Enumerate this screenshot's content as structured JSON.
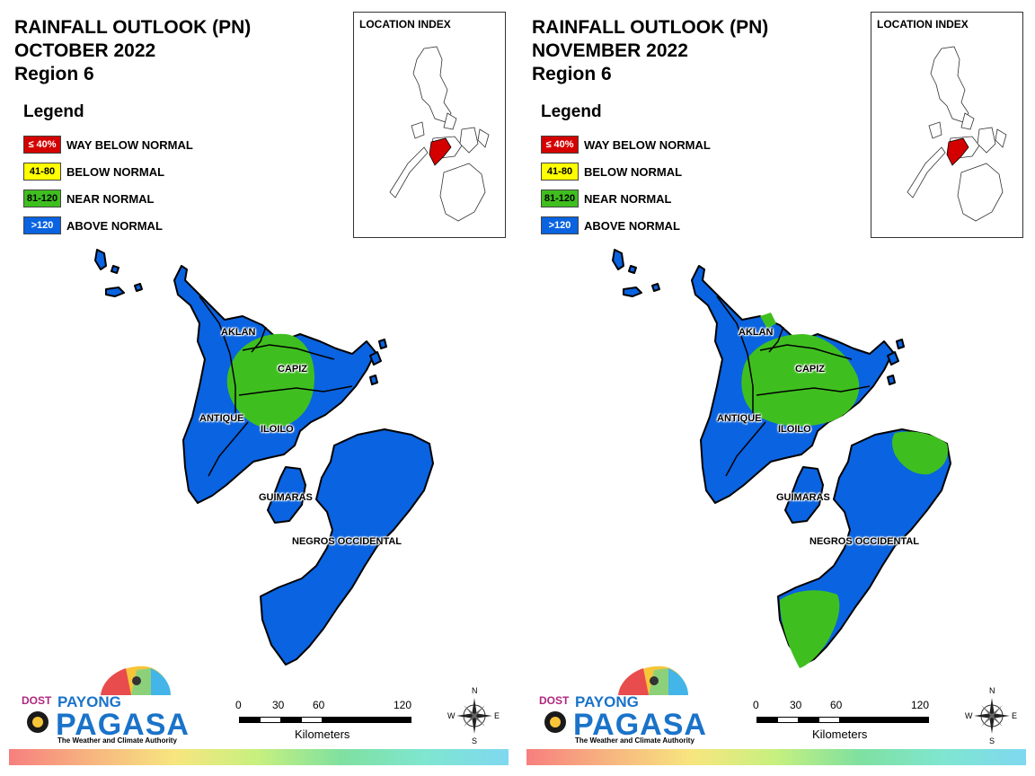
{
  "panels": [
    {
      "title": [
        "RAINFALL OUTLOOK (PN)",
        "OCTOBER 2022",
        "Region 6"
      ],
      "legend": {
        "title": "Legend",
        "items": [
          {
            "code": "≤ 40%",
            "label": "WAY BELOW NORMAL",
            "color": "#d40000",
            "text_color": "#ffffff"
          },
          {
            "code": "41-80",
            "label": "BELOW NORMAL",
            "color": "#ffff00",
            "text_color": "#000000"
          },
          {
            "code": "81-120",
            "label": "NEAR NORMAL",
            "color": "#3fbf1f",
            "text_color": "#000000"
          },
          {
            "code": ">120",
            "label": "ABOVE NORMAL",
            "color": "#0a63e0",
            "text_color": "#ffffff"
          }
        ]
      },
      "location_index": {
        "title": "LOCATION INDEX"
      },
      "provinces": [
        "AKLAN",
        "CAPIZ",
        "ANTIQUE",
        "ILOILO",
        "GUIMARAS",
        "NEGROS OCCIDENTAL"
      ],
      "near_normal_zones": [
        "Aklan–Capiz–Iloilo central area"
      ],
      "scale": {
        "ticks": [
          "0",
          "30",
          "60",
          "120"
        ],
        "unit": "Kilometers"
      },
      "compass": {
        "n": "N",
        "e": "E",
        "s": "S",
        "w": "W"
      },
      "logo": {
        "dost": "DOST",
        "payong": "PAYONG",
        "pagasa": "PAGASA",
        "tagline": "The Weather and Climate Authority"
      }
    },
    {
      "title": [
        "RAINFALL OUTLOOK (PN)",
        "NOVEMBER 2022",
        "Region 6"
      ],
      "legend": {
        "title": "Legend",
        "items": [
          {
            "code": "≤ 40%",
            "label": "WAY BELOW NORMAL",
            "color": "#d40000",
            "text_color": "#ffffff"
          },
          {
            "code": "41-80",
            "label": "BELOW NORMAL",
            "color": "#ffff00",
            "text_color": "#000000"
          },
          {
            "code": "81-120",
            "label": "NEAR NORMAL",
            "color": "#3fbf1f",
            "text_color": "#000000"
          },
          {
            "code": ">120",
            "label": "ABOVE NORMAL",
            "color": "#0a63e0",
            "text_color": "#ffffff"
          }
        ]
      },
      "location_index": {
        "title": "LOCATION INDEX"
      },
      "provinces": [
        "AKLAN",
        "CAPIZ",
        "ANTIQUE",
        "ILOILO",
        "GUIMARAS",
        "NEGROS OCCIDENTAL"
      ],
      "near_normal_zones": [
        "Aklan–Capiz–Iloilo area",
        "Northeast Negros Occidental",
        "Southwest Negros Occidental"
      ],
      "scale": {
        "ticks": [
          "0",
          "30",
          "60",
          "120"
        ],
        "unit": "Kilometers"
      },
      "compass": {
        "n": "N",
        "e": "E",
        "s": "S",
        "w": "W"
      },
      "logo": {
        "dost": "DOST",
        "payong": "PAYONG",
        "pagasa": "PAGASA",
        "tagline": "The Weather and Climate Authority"
      }
    }
  ]
}
